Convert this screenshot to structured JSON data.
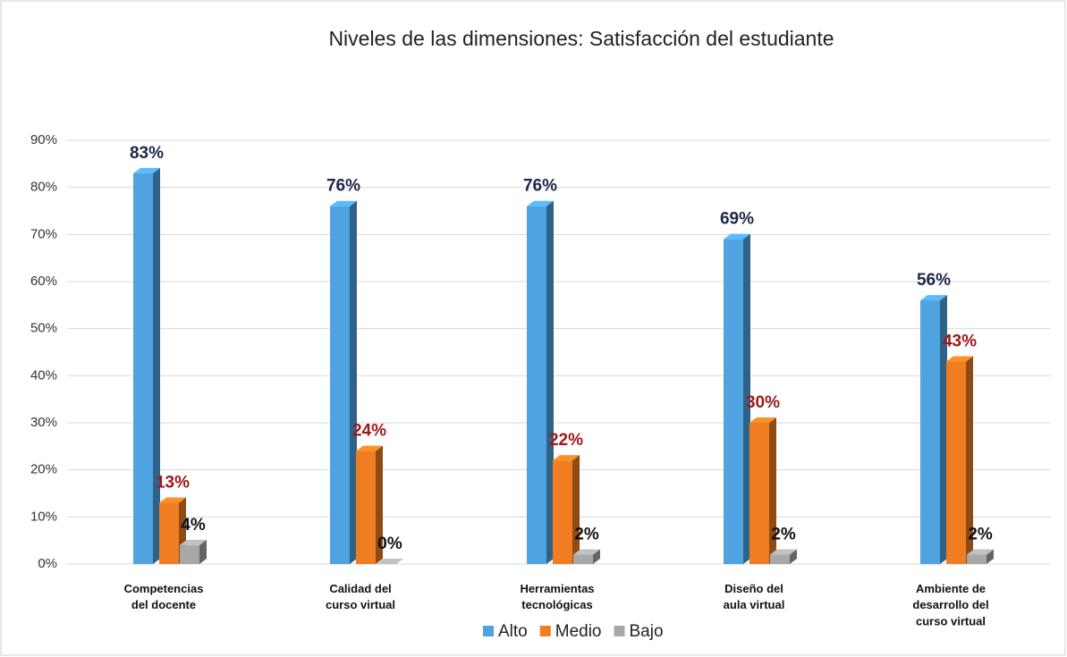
{
  "chart_data": {
    "type": "bar3d",
    "title": "Niveles de las dimensiones:  Satisfacción del estudiante",
    "categories": [
      "Competencias\ndel docente",
      "Calidad del\ncurso virtual",
      "Herramientas\ntecnológicas",
      "Diseño del\naula virtual",
      "Ambiente de\ndesarrollo del\ncurso virtual"
    ],
    "series": [
      {
        "name": "Alto",
        "color": "#4ea3e0",
        "label_color": "#1c2748",
        "values": [
          83,
          76,
          76,
          69,
          56
        ],
        "value_labels": [
          "83%",
          "76%",
          "76%",
          "69%",
          "56%"
        ]
      },
      {
        "name": "Medio",
        "color": "#f07d22",
        "label_color": "#a01818",
        "values": [
          13,
          24,
          22,
          30,
          43
        ],
        "value_labels": [
          "13%",
          "24%",
          "22%",
          "30%",
          "43%"
        ]
      },
      {
        "name": "Bajo",
        "color": "#a8a8a8",
        "label_color": "#111111",
        "values": [
          4,
          0,
          2,
          2,
          2
        ],
        "value_labels": [
          "4%",
          "0%",
          "2%",
          "2%",
          "2%"
        ]
      }
    ],
    "ylim": [
      0,
      90
    ],
    "yticks": [
      {
        "value": 0,
        "label": "0%"
      },
      {
        "value": 10,
        "label": "10%"
      },
      {
        "value": 20,
        "label": "20%"
      },
      {
        "value": 30,
        "label": "30%"
      },
      {
        "value": 40,
        "label": "40%"
      },
      {
        "value": 50,
        "label": "50%"
      },
      {
        "value": 60,
        "label": "60%"
      },
      {
        "value": 70,
        "label": "70%"
      },
      {
        "value": 80,
        "label": "80%"
      },
      {
        "value": 90,
        "label": "90%"
      }
    ],
    "grid": true,
    "legend": "bottom"
  }
}
